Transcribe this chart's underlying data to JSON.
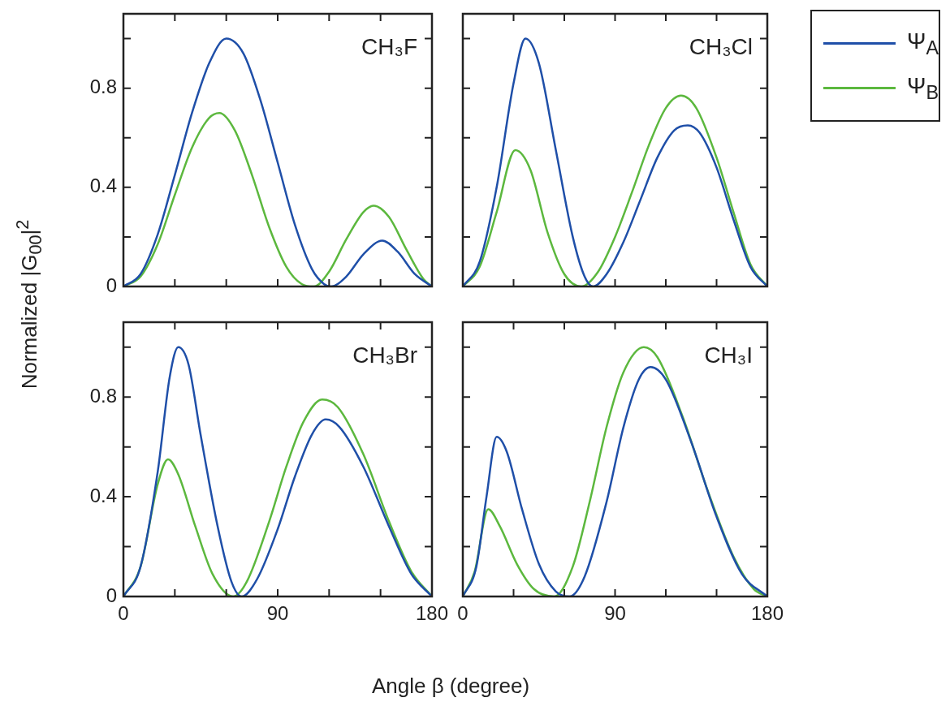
{
  "chart_data": [
    {
      "type": "line",
      "title": "CH₃F",
      "ylabel": "Normalized |G$_{00}$|$^{2}$",
      "xlim": [
        0,
        180
      ],
      "xticks": [
        0,
        {
          "value": 30,
          "label": null
        },
        {
          "value": 60,
          "label": null
        },
        90,
        {
          "value": 120,
          "label": null
        },
        {
          "value": 150,
          "label": null
        },
        180
      ],
      "ylim": [
        0,
        1.1
      ],
      "yticks": [
        0,
        {
          "value": 0.2,
          "label": null
        },
        0.4,
        {
          "value": 0.6,
          "label": null
        },
        0.8,
        {
          "value": 1.0,
          "label": null
        }
      ],
      "tick_labels": "y",
      "grid": false,
      "marker": "none",
      "series": [
        {
          "color": "#1f4fa8",
          "x": [
            0,
            10,
            20,
            30,
            40,
            50,
            60,
            70,
            80,
            90,
            100,
            110,
            117,
            121,
            130,
            140,
            151,
            160,
            170,
            180
          ],
          "values": [
            0,
            0.05,
            0.21,
            0.45,
            0.7,
            0.9,
            1.0,
            0.94,
            0.75,
            0.5,
            0.25,
            0.07,
            0.01,
            0,
            0.04,
            0.13,
            0.185,
            0.14,
            0.05,
            0
          ]
        },
        {
          "color": "#5cb83e",
          "x": [
            0,
            10,
            20,
            30,
            40,
            50,
            56,
            65,
            75,
            85,
            95,
            104,
            111,
            120,
            130,
            140,
            146,
            155,
            165,
            175,
            180
          ],
          "values": [
            0,
            0.04,
            0.17,
            0.37,
            0.56,
            0.68,
            0.7,
            0.63,
            0.45,
            0.24,
            0.08,
            0.01,
            0,
            0.06,
            0.19,
            0.3,
            0.326,
            0.28,
            0.15,
            0.03,
            0
          ]
        }
      ]
    },
    {
      "type": "line",
      "title": "CH₃Cl",
      "xlim": [
        0,
        180
      ],
      "xticks": [
        0,
        {
          "value": 30,
          "label": null
        },
        {
          "value": 60,
          "label": null
        },
        90,
        {
          "value": 120,
          "label": null
        },
        {
          "value": 150,
          "label": null
        },
        180
      ],
      "ylim": [
        0,
        1.1
      ],
      "yticks": [
        0,
        {
          "value": 0.2,
          "label": null
        },
        0.4,
        {
          "value": 0.6,
          "label": null
        },
        0.8,
        {
          "value": 1.0,
          "label": null
        }
      ],
      "tick_labels": false,
      "grid": false,
      "marker": "none",
      "legend": "right",
      "series": [
        {
          "name": "Ψ$_{A}$",
          "color": "#1f4fa8",
          "x": [
            0,
            10,
            20,
            30,
            37,
            45,
            55,
            65,
            72,
            77,
            85,
            95,
            105,
            115,
            125,
            133,
            140,
            150,
            160,
            170,
            180
          ],
          "values": [
            0,
            0.1,
            0.4,
            0.82,
            1.0,
            0.9,
            0.55,
            0.2,
            0.04,
            0,
            0.05,
            0.18,
            0.35,
            0.52,
            0.63,
            0.65,
            0.62,
            0.48,
            0.27,
            0.08,
            0
          ]
        },
        {
          "name": "Ψ$_{B}$",
          "color": "#5cb83e",
          "x": [
            0,
            10,
            20,
            31,
            40,
            50,
            60,
            70,
            80,
            90,
            100,
            110,
            120,
            129,
            138,
            150,
            160,
            170,
            180
          ],
          "values": [
            0,
            0.08,
            0.3,
            0.55,
            0.47,
            0.22,
            0.05,
            0,
            0.06,
            0.2,
            0.38,
            0.57,
            0.72,
            0.77,
            0.72,
            0.52,
            0.3,
            0.09,
            0
          ]
        }
      ]
    },
    {
      "type": "line",
      "title": "CH₃Br",
      "xlabel": "Angle β (degree)",
      "xlim": [
        0,
        180
      ],
      "xticks": [
        0,
        {
          "value": 30,
          "label": null
        },
        {
          "value": 60,
          "label": null
        },
        90,
        {
          "value": 120,
          "label": null
        },
        {
          "value": 150,
          "label": null
        },
        180
      ],
      "ylim": [
        0,
        1.1
      ],
      "yticks": [
        0,
        {
          "value": 0.2,
          "label": null
        },
        0.4,
        {
          "value": 0.6,
          "label": null
        },
        0.8,
        {
          "value": 1.0,
          "label": null
        }
      ],
      "grid": false,
      "marker": "none",
      "series": [
        {
          "color": "#1f4fa8",
          "x": [
            0,
            10,
            20,
            27,
            32,
            38,
            45,
            55,
            63,
            69,
            78,
            90,
            100,
            110,
            118,
            126,
            140,
            155,
            168,
            180
          ],
          "values": [
            0,
            0.12,
            0.5,
            0.88,
            1.0,
            0.93,
            0.65,
            0.28,
            0.06,
            0,
            0.07,
            0.27,
            0.48,
            0.65,
            0.71,
            0.68,
            0.52,
            0.28,
            0.09,
            0
          ]
        },
        {
          "color": "#5cb83e",
          "x": [
            0,
            10,
            20,
            26,
            32,
            42,
            52,
            64,
            72,
            85,
            95,
            105,
            116,
            125,
            140,
            155,
            168,
            180
          ],
          "values": [
            0,
            0.12,
            0.45,
            0.55,
            0.49,
            0.28,
            0.09,
            0,
            0.06,
            0.3,
            0.52,
            0.7,
            0.79,
            0.76,
            0.57,
            0.3,
            0.1,
            0
          ]
        }
      ]
    },
    {
      "type": "line",
      "title": "CH₃I",
      "xlim": [
        0,
        180
      ],
      "xticks": [
        0,
        {
          "value": 30,
          "label": null
        },
        {
          "value": 60,
          "label": null
        },
        90,
        {
          "value": 120,
          "label": null
        },
        {
          "value": 150,
          "label": null
        },
        180
      ],
      "ylim": [
        0,
        1.1
      ],
      "yticks": [
        0,
        {
          "value": 0.2,
          "label": null
        },
        0.4,
        {
          "value": 0.6,
          "label": null
        },
        0.8,
        {
          "value": 1.0,
          "label": null
        }
      ],
      "tick_labels": "x",
      "grid": false,
      "marker": "none",
      "series": [
        {
          "color": "#1f4fa8",
          "x": [
            0,
            8,
            14,
            20,
            26,
            35,
            45,
            55,
            63,
            72,
            85,
            95,
            104,
            111,
            120,
            135,
            150,
            165,
            180
          ],
          "values": [
            0,
            0.12,
            0.4,
            0.64,
            0.58,
            0.35,
            0.13,
            0.02,
            0,
            0.08,
            0.38,
            0.68,
            0.87,
            0.92,
            0.87,
            0.62,
            0.32,
            0.09,
            0
          ]
        },
        {
          "color": "#5cb83e",
          "x": [
            0,
            7,
            15,
            22,
            32,
            42,
            54,
            65,
            75,
            85,
            95,
            107,
            115,
            130,
            145,
            160,
            172,
            180
          ],
          "values": [
            0,
            0.1,
            0.35,
            0.28,
            0.13,
            0.03,
            0,
            0.12,
            0.38,
            0.68,
            0.9,
            1.0,
            0.96,
            0.72,
            0.42,
            0.16,
            0.03,
            0
          ]
        }
      ]
    }
  ]
}
